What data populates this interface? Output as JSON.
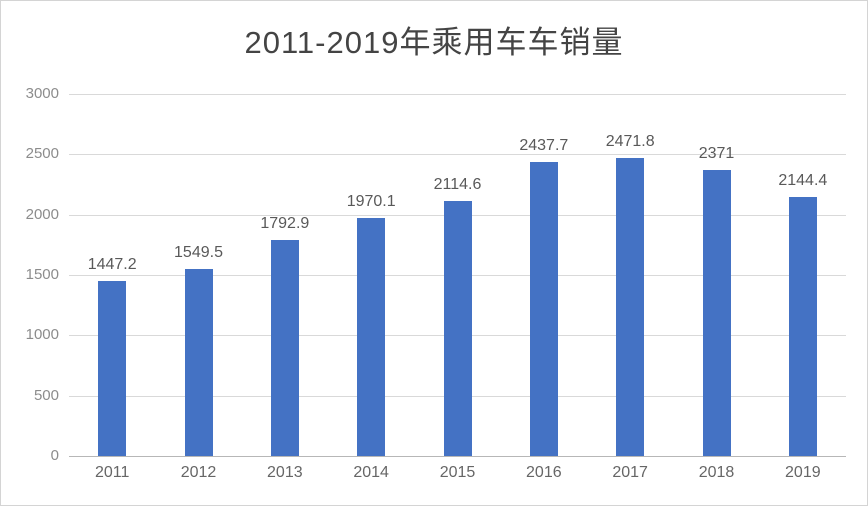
{
  "chart_data": {
    "type": "bar",
    "title": "2011-2019年乘用车车销量",
    "categories": [
      "2011",
      "2012",
      "2013",
      "2014",
      "2015",
      "2016",
      "2017",
      "2018",
      "2019"
    ],
    "values": [
      1447.2,
      1549.5,
      1792.9,
      1970.1,
      2114.6,
      2437.7,
      2471.8,
      2371,
      2144.4
    ],
    "data_labels": [
      "1447.2",
      "1549.5",
      "1792.9",
      "1970.1",
      "2114.6",
      "2437.7",
      "2471.8",
      "2371",
      "2144.4"
    ],
    "xlabel": "",
    "ylabel": "",
    "ylim": [
      0,
      3000
    ],
    "ytick_step": 500,
    "yticks": [
      "0",
      "500",
      "1000",
      "1500",
      "2000",
      "2500",
      "3000"
    ],
    "grid": "horizontal-only",
    "legend": "none",
    "colors": {
      "bar": "#4472C4",
      "gridline": "#d9d9d9",
      "axis_line": "#b7b7b7",
      "title_text": "#444444",
      "y_tick_text": "#8c8c8c",
      "data_label_text": "#595959",
      "x_tick_text": "#666666",
      "background": "#ffffff",
      "border": "#d4d4d4"
    }
  }
}
